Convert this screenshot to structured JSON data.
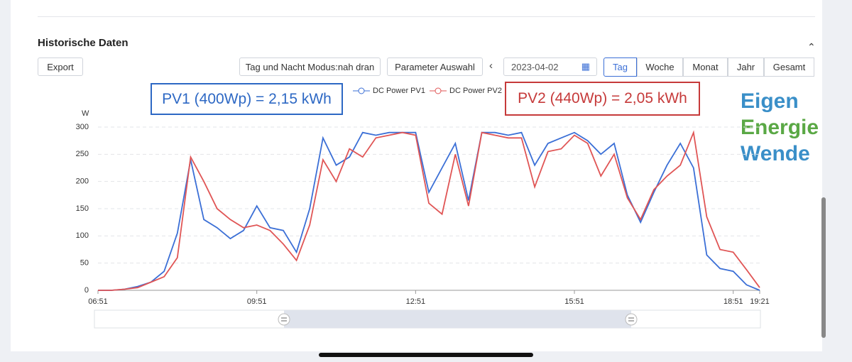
{
  "header": {
    "title": "Historische Daten"
  },
  "buttons": {
    "export": "Export",
    "mode": "Tag und Nacht Modus:nah dran",
    "params": "Parameter Auswahl"
  },
  "date": "2023-04-02",
  "tabs": [
    "Tag",
    "Woche",
    "Monat",
    "Jahr",
    "Gesamt"
  ],
  "annotations": {
    "pv1": "PV1 (400Wp) = 2,15 kWh",
    "pv2": "PV2 (440Wp) = 2,05 kWh"
  },
  "logo": [
    "Eigen",
    "Energie",
    "Wende"
  ],
  "chart_data": {
    "type": "line",
    "y_label": "W",
    "x": [
      "06:51",
      "07:06",
      "07:21",
      "07:36",
      "07:51",
      "08:06",
      "08:21",
      "08:36",
      "08:51",
      "09:06",
      "09:21",
      "09:36",
      "09:51",
      "10:06",
      "10:21",
      "10:36",
      "10:51",
      "11:06",
      "11:21",
      "11:36",
      "11:51",
      "12:06",
      "12:21",
      "12:36",
      "12:51",
      "13:06",
      "13:21",
      "13:36",
      "13:51",
      "14:06",
      "14:21",
      "14:36",
      "14:51",
      "15:06",
      "15:21",
      "15:36",
      "15:51",
      "16:06",
      "16:21",
      "16:36",
      "16:51",
      "17:06",
      "17:21",
      "17:36",
      "17:51",
      "18:06",
      "18:21",
      "18:36",
      "18:51",
      "19:06",
      "19:21"
    ],
    "series": [
      {
        "name": "DC Power PV1",
        "color": "#3b6fd6",
        "values": [
          0,
          0,
          2,
          7,
          15,
          35,
          105,
          240,
          130,
          115,
          95,
          110,
          155,
          115,
          110,
          70,
          150,
          280,
          230,
          245,
          290,
          285,
          290,
          290,
          290,
          180,
          225,
          270,
          165,
          290,
          290,
          285,
          290,
          230,
          270,
          280,
          290,
          275,
          250,
          270,
          175,
          125,
          180,
          230,
          270,
          225,
          65,
          40,
          35,
          10,
          0
        ]
      },
      {
        "name": "DC Power PV2",
        "color": "#e05555",
        "values": [
          0,
          0,
          2,
          5,
          15,
          25,
          60,
          245,
          200,
          150,
          130,
          115,
          120,
          110,
          85,
          55,
          120,
          240,
          200,
          260,
          245,
          280,
          285,
          290,
          285,
          160,
          140,
          250,
          155,
          290,
          285,
          280,
          280,
          190,
          255,
          260,
          285,
          270,
          210,
          250,
          170,
          130,
          185,
          210,
          230,
          290,
          135,
          75,
          70,
          38,
          5
        ]
      }
    ],
    "xlim": [
      "06:51",
      "19:21"
    ],
    "xticks": [
      "06:51",
      "09:51",
      "12:51",
      "15:51",
      "18:51",
      "19:21"
    ],
    "ylim": [
      0,
      300
    ],
    "yticks": [
      0,
      50,
      100,
      150,
      200,
      250,
      300
    ],
    "grid": true,
    "legend": "top"
  }
}
